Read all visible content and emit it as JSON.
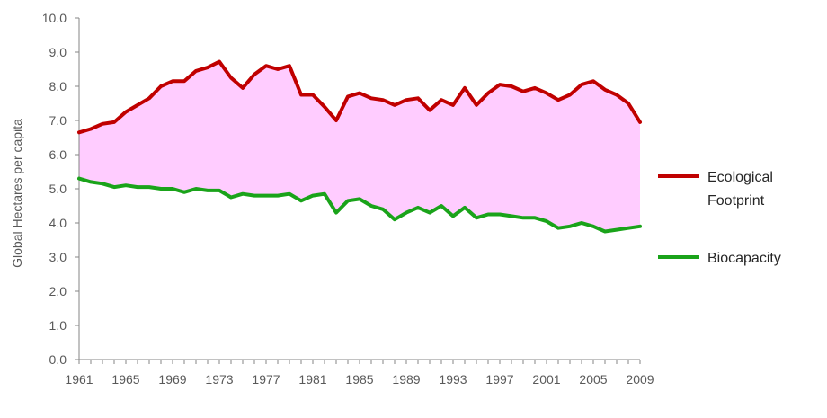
{
  "chart_data": {
    "type": "line",
    "title": "",
    "xlabel": "",
    "ylabel": "Global Hectares per capita",
    "x": [
      1961,
      1962,
      1963,
      1964,
      1965,
      1966,
      1967,
      1968,
      1969,
      1970,
      1971,
      1972,
      1973,
      1974,
      1975,
      1976,
      1977,
      1978,
      1979,
      1980,
      1981,
      1982,
      1983,
      1984,
      1985,
      1986,
      1987,
      1988,
      1989,
      1990,
      1991,
      1992,
      1993,
      1994,
      1995,
      1996,
      1997,
      1998,
      1999,
      2000,
      2001,
      2002,
      2003,
      2004,
      2005,
      2006,
      2007,
      2008,
      2009
    ],
    "x_tick_labels": [
      "1961",
      "1965",
      "1969",
      "1973",
      "1977",
      "1981",
      "1985",
      "1989",
      "1993",
      "1997",
      "2001",
      "2005",
      "2009"
    ],
    "y_tick_labels": [
      "0.0",
      "1.0",
      "2.0",
      "3.0",
      "4.0",
      "5.0",
      "6.0",
      "7.0",
      "8.0",
      "9.0",
      "10.0"
    ],
    "ylim": [
      0,
      10
    ],
    "grid": false,
    "legend_position": "right",
    "fill_between": {
      "upper": "Ecological Footprint",
      "lower": "Biocapacity",
      "color": "#ffccff"
    },
    "series": [
      {
        "name_lines": [
          "Ecological",
          "Footprint"
        ],
        "name": "Ecological Footprint",
        "color": "#c00000",
        "values": [
          6.65,
          6.75,
          6.9,
          6.95,
          7.25,
          7.45,
          7.65,
          8.0,
          8.15,
          8.15,
          8.45,
          8.55,
          8.72,
          8.25,
          7.95,
          8.35,
          8.6,
          8.5,
          8.6,
          7.75,
          7.75,
          7.4,
          7.0,
          7.7,
          7.8,
          7.65,
          7.6,
          7.45,
          7.6,
          7.65,
          7.3,
          7.6,
          7.45,
          7.95,
          7.45,
          7.8,
          8.05,
          8.0,
          7.85,
          7.95,
          7.8,
          7.6,
          7.75,
          8.05,
          8.15,
          7.9,
          7.75,
          7.5,
          6.95
        ]
      },
      {
        "name_lines": [
          "Biocapacity"
        ],
        "name": "Biocapacity",
        "color": "#1aa31a",
        "values": [
          5.3,
          5.2,
          5.15,
          5.05,
          5.1,
          5.05,
          5.05,
          5.0,
          5.0,
          4.9,
          5.0,
          4.95,
          4.95,
          4.75,
          4.85,
          4.8,
          4.8,
          4.8,
          4.85,
          4.65,
          4.8,
          4.85,
          4.3,
          4.65,
          4.7,
          4.5,
          4.4,
          4.1,
          4.3,
          4.45,
          4.3,
          4.5,
          4.2,
          4.45,
          4.15,
          4.25,
          4.25,
          4.2,
          4.15,
          4.15,
          4.05,
          3.85,
          3.9,
          4.0,
          3.9,
          3.75,
          3.8,
          3.85,
          3.9
        ]
      }
    ]
  }
}
